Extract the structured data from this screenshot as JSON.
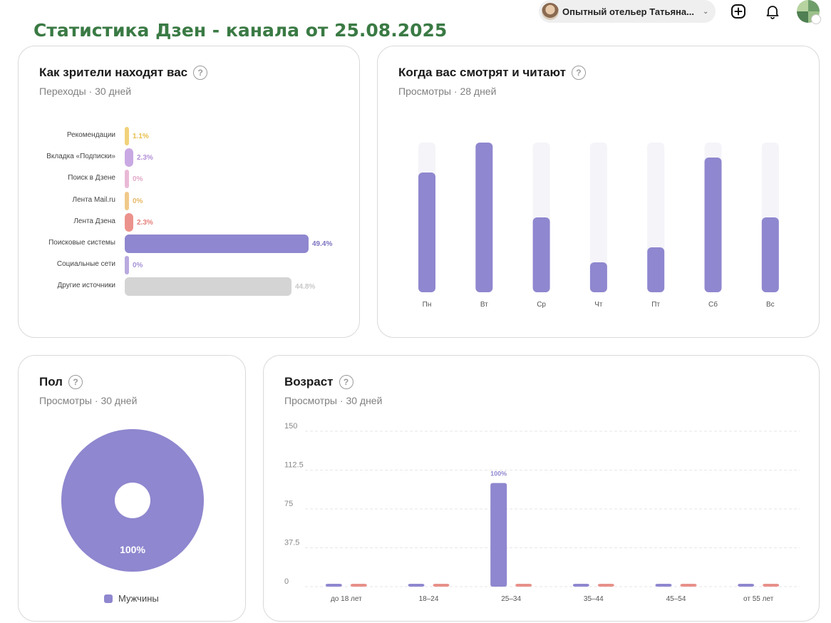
{
  "page_title": "Статистика Дзен - канала от 25.08.2025",
  "header": {
    "account_name": "Опытный отельер Татьяна...",
    "icons": [
      "account-avatar",
      "chevron-down-icon",
      "plus-icon",
      "bell-icon",
      "channel-avatar"
    ]
  },
  "sources_card": {
    "title": "Как зрители находят вас",
    "subtitle": "Переходы · 30 дней",
    "help_glyph": "?"
  },
  "week_card": {
    "title": "Когда вас смотрят и читают",
    "subtitle": "Просмотры · 28 дней",
    "help_glyph": "?"
  },
  "gender_card": {
    "title": "Пол",
    "subtitle": "Просмотры · 30 дней",
    "help_glyph": "?",
    "legend_label": "Мужчины"
  },
  "age_card": {
    "title": "Возраст",
    "subtitle": "Просмотры · 30 дней",
    "help_glyph": "?"
  },
  "colors": {
    "accent_purple": "#8f87cf",
    "track_grey": "#f4f4f9",
    "salmon": "#e8908a",
    "title_green": "#3a7a44"
  },
  "chart_data": [
    {
      "id": "sources",
      "type": "bar",
      "orientation": "horizontal",
      "categories": [
        "Рекомендации",
        "Вкладка «Подписки»",
        "Поиск в Дзене",
        "Лента Mail.ru",
        "Лента Дзена",
        "Поисковые системы",
        "Социальные сети",
        "Другие источники"
      ],
      "values": [
        1.1,
        2.3,
        0,
        0,
        2.3,
        49.4,
        0,
        44.8
      ],
      "value_labels": [
        "1.1%",
        "2.3%",
        "0%",
        "0%",
        "2.3%",
        "49.4%",
        "0%",
        "44.8%"
      ],
      "colors": [
        "#f2d27a",
        "#c9a9e3",
        "#e9b9d6",
        "#f0c98a",
        "#ec928c",
        "#8f87cf",
        "#b9a9df",
        "#d4d4d4"
      ],
      "label_colors": [
        "#e8bd4a",
        "#b48fd6",
        "#e3a9c8",
        "#e8b868",
        "#e47f79",
        "#7b73c0",
        "#a693d6",
        "#c8c8c8"
      ],
      "max": 49.4
    },
    {
      "id": "weekdays",
      "type": "bar",
      "categories": [
        "Пн",
        "Вт",
        "Ср",
        "Чт",
        "Пт",
        "Сб",
        "Вс"
      ],
      "values": [
        80,
        100,
        50,
        20,
        30,
        90,
        50
      ],
      "ylim": [
        0,
        100
      ]
    },
    {
      "id": "gender",
      "type": "pie",
      "categories": [
        "Мужчины"
      ],
      "values": [
        100
      ],
      "value_labels": [
        "100%"
      ],
      "colors": [
        "#8f87cf"
      ]
    },
    {
      "id": "age",
      "type": "bar",
      "categories": [
        "до 18 лет",
        "18–24",
        "25–34",
        "35–44",
        "45–54",
        "от 55 лет"
      ],
      "series": [
        {
          "values": [
            0,
            0,
            100,
            0,
            0,
            0
          ],
          "color": "#8f87cf"
        },
        {
          "values": [
            0,
            0,
            0,
            0,
            0,
            0
          ],
          "color": "#e8908a"
        }
      ],
      "value_labels": [
        "",
        "",
        "100%",
        "",
        "",
        ""
      ],
      "yticks": [
        "0",
        "37.5",
        "75",
        "112.5",
        "150"
      ],
      "ylim": [
        0,
        150
      ]
    }
  ]
}
